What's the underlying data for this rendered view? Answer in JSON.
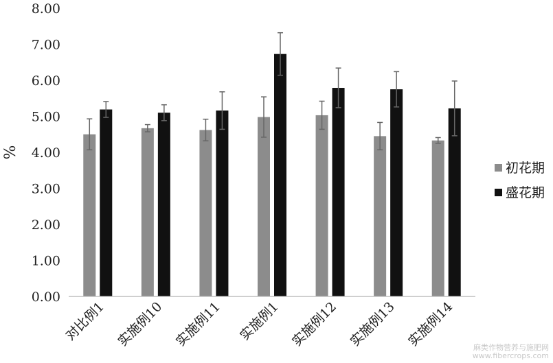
{
  "chart_data": {
    "type": "bar",
    "title": "",
    "xlabel": "",
    "ylabel": "%",
    "ylim": [
      0,
      8
    ],
    "yticks": [
      "0.00",
      "1.00",
      "2.00",
      "3.00",
      "4.00",
      "5.00",
      "6.00",
      "7.00",
      "8.00"
    ],
    "categories": [
      "对比例1",
      "实施例10",
      "实施例11",
      "实施例1",
      "实施例12",
      "实施例13",
      "实施例14"
    ],
    "series": [
      {
        "name": "初花期",
        "color": "#8c8c8c",
        "values": [
          4.5,
          4.67,
          4.62,
          4.98,
          5.03,
          4.45,
          4.33
        ],
        "errors": [
          0.43,
          0.1,
          0.3,
          0.56,
          0.39,
          0.38,
          0.08
        ]
      },
      {
        "name": "盛花期",
        "color": "#111111",
        "values": [
          5.19,
          5.1,
          5.16,
          6.73,
          5.79,
          5.75,
          5.22
        ],
        "errors": [
          0.22,
          0.22,
          0.52,
          0.59,
          0.55,
          0.49,
          0.76
        ]
      }
    ],
    "legend": "right",
    "grid": false
  },
  "watermark": {
    "line1": "麻类作物营养与施肥网",
    "line2": "www.fibercrops.com"
  }
}
